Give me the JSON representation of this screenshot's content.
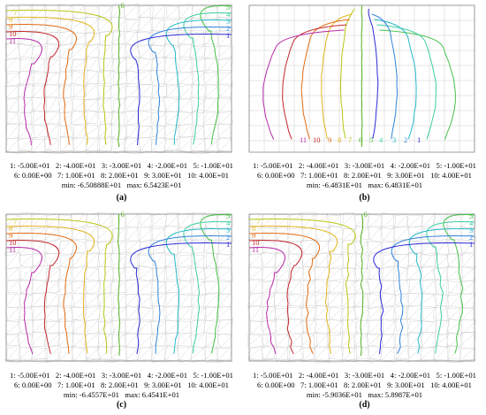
{
  "contour_colors": {
    "1": "#2a2ad6",
    "2": "#2f82d9",
    "3": "#27b9c9",
    "4": "#3bcfa0",
    "5": "#46c046",
    "6": "#4fae1c",
    "7": "#b7c612",
    "8": "#e3b51a",
    "9": "#e26a10",
    "10": "#c2262c",
    "11": "#b82aa9"
  },
  "panels": [
    {
      "id": "a",
      "caption": "(a)",
      "legend_row1": "1: -5.00E+01   2: -4.00E+01   3: -3.00E+01   4: -2.00E+01   5: -1.00E+01",
      "legend_row2": "6: 0.00E+00   7: 1.00E+01   8: 2.00E+01   9: 3.00E+01   10: 4.00E+01",
      "minmax": "min: -6.50888E+01   max: 6.5423E+01",
      "labels_left": [
        "7",
        "8",
        "9",
        "10",
        "11"
      ],
      "label_top_center": "6",
      "labels_right": [
        "5",
        "4",
        "3",
        "2",
        "1"
      ]
    },
    {
      "id": "b",
      "caption": "(b)",
      "legend_row1": "1: -5.00E+01   2: -4.00E+01   3: -3.00E+01   4: -2.00E+01   5: -1.00E+01",
      "legend_row2": "6: 0.00E+00   7: 1.00E+01   8: 2.00E+01   9: 3.00E+01   10: 4.00E+01",
      "minmax": "min: -6.4831E+01   max: 6.4831E+01",
      "labels_bottom": [
        "11",
        "10",
        "9",
        "8",
        "7",
        "6",
        "5",
        "4",
        "3",
        "2",
        "1"
      ]
    },
    {
      "id": "c",
      "caption": "(c)",
      "legend_row1": "1: -5.00E+01   2: -4.00E+01   3: -3.00E+01   4: -2.00E+01   5: -1.00E+01",
      "legend_row2": "6: 0.00E+00   7: 1.00E+01   8: 2.00E+01   9: 3.00E+01   10: 4.00E+01",
      "minmax": "min: -6.4557E+01   max: 6.4541E+01",
      "labels_left": [
        "7",
        "8",
        "9",
        "10",
        "11"
      ],
      "label_top_center": "6",
      "labels_right": [
        "5",
        "4",
        "3",
        "2",
        "1"
      ]
    },
    {
      "id": "d",
      "caption": "(d)",
      "legend_row1": "1: -5.00E+01   2: -4.00E+01   3: -3.00E+01   4: -2.00E+01   5: -1.00E+01",
      "legend_row2": "6: 0.00E+00   7: 1.00E+01   8: 2.00E+01   9: 3.00E+01   10: 4.00E+01",
      "minmax": "min: -5.9036E+01   max: 5.8987E+01",
      "labels_left": [
        "7",
        "8",
        "9",
        "10",
        "11"
      ],
      "label_top_center": "6",
      "labels_right": [
        "5",
        "4",
        "3",
        "2",
        "1"
      ]
    }
  ]
}
